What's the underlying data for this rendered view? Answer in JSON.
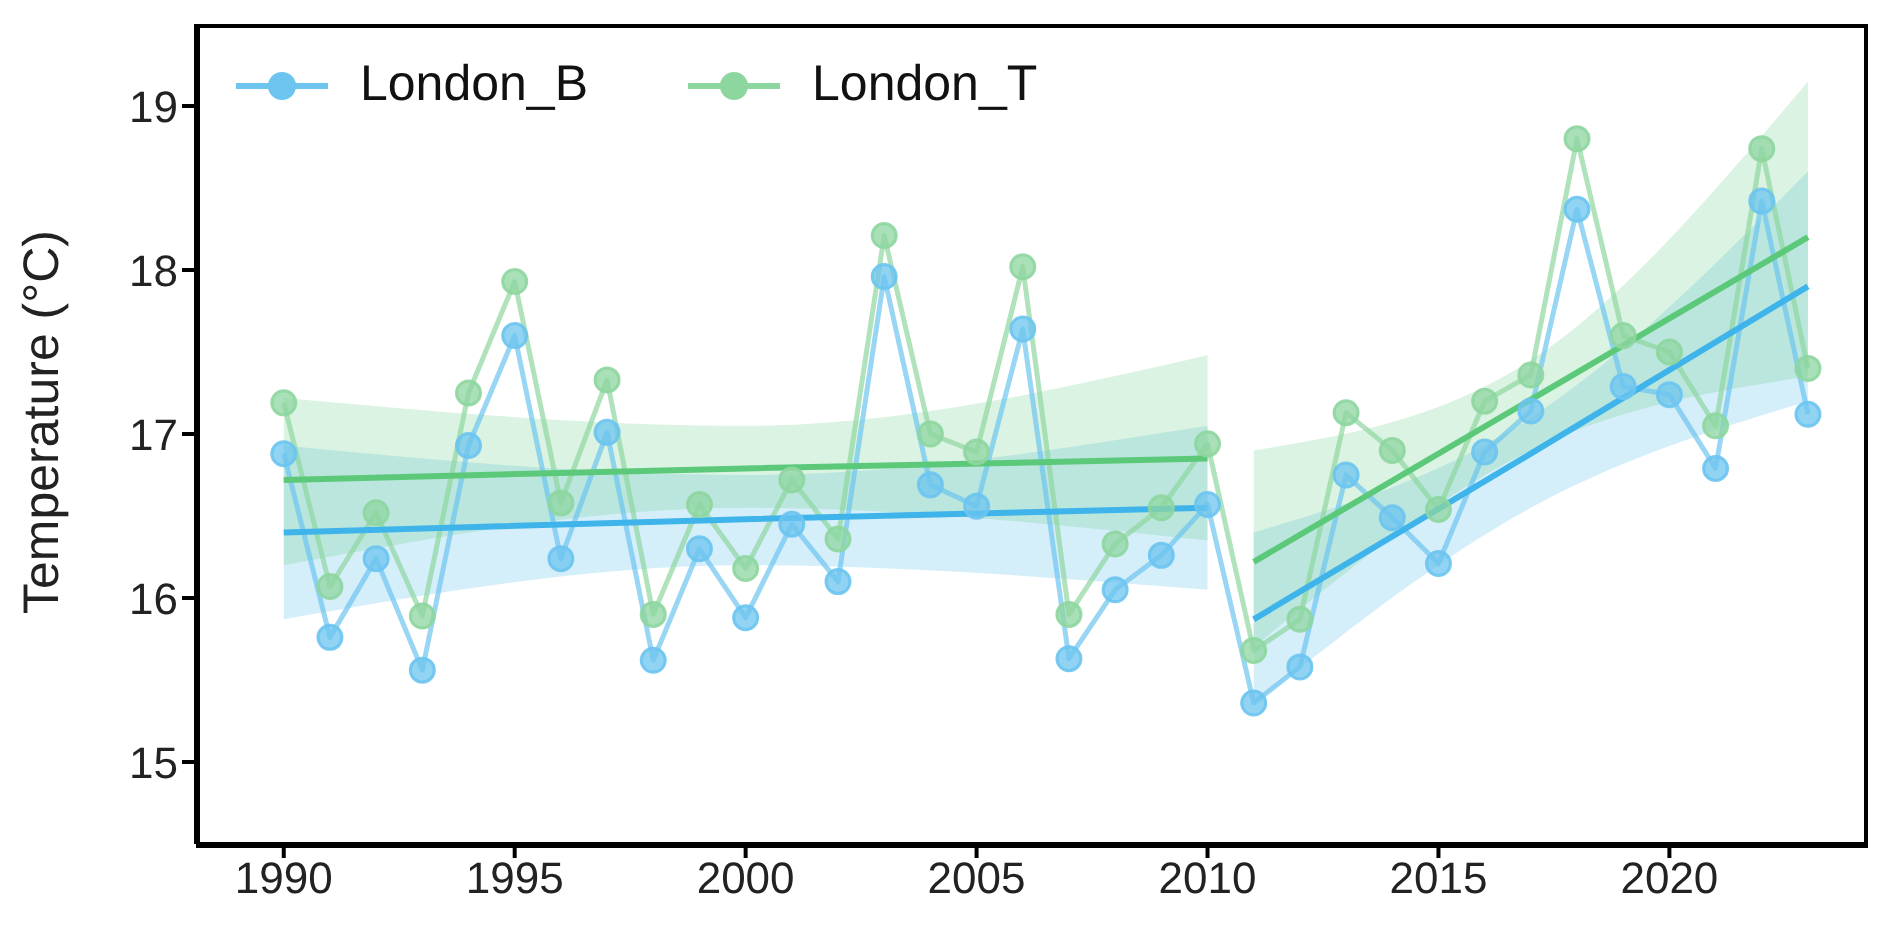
{
  "chart_data": {
    "type": "line",
    "ylabel": "Temperature (°C)",
    "x": [
      1990,
      1991,
      1992,
      1993,
      1994,
      1995,
      1996,
      1997,
      1998,
      1999,
      2000,
      2001,
      2002,
      2003,
      2004,
      2005,
      2006,
      2007,
      2008,
      2009,
      2010,
      2011,
      2012,
      2013,
      2014,
      2015,
      2016,
      2017,
      2018,
      2019,
      2020,
      2021,
      2022,
      2023
    ],
    "series": [
      {
        "name": "London_B",
        "color": "#6cc4ef",
        "values": [
          16.88,
          15.76,
          16.24,
          15.56,
          16.93,
          17.6,
          16.24,
          17.01,
          15.62,
          16.3,
          15.88,
          16.45,
          16.1,
          17.96,
          16.69,
          16.56,
          17.64,
          15.63,
          16.05,
          16.26,
          16.57,
          15.36,
          15.58,
          16.75,
          16.49,
          16.21,
          16.89,
          17.14,
          18.37,
          17.29,
          17.24,
          16.79,
          18.42,
          17.12
        ]
      },
      {
        "name": "London_T",
        "color": "#8ed6a0",
        "values": [
          17.19,
          16.07,
          16.52,
          15.89,
          17.25,
          17.93,
          16.58,
          17.33,
          15.9,
          16.57,
          16.18,
          16.72,
          16.36,
          18.21,
          17.0,
          16.89,
          18.02,
          15.9,
          16.33,
          16.55,
          16.94,
          15.68,
          15.87,
          17.13,
          16.9,
          16.54,
          17.2,
          17.36,
          18.8,
          17.6,
          17.5,
          17.05,
          18.74,
          17.4
        ]
      },
      {
        "type": "line",
        "color": "#3fb4ea",
        "marker": "none",
        "x": [
          1990,
          2000,
          2010
        ],
        "values": [
          16.4,
          16.48,
          16.55
        ],
        "lower": [
          15.87,
          16.2,
          16.05
        ],
        "upper": [
          16.93,
          16.75,
          17.05
        ]
      },
      {
        "type": "line",
        "color": "#5cc97a",
        "marker": "none",
        "x": [
          1990,
          2000,
          2010
        ],
        "values": [
          16.72,
          16.79,
          16.85
        ],
        "lower": [
          16.2,
          16.55,
          16.35
        ],
        "upper": [
          17.22,
          17.05,
          17.48
        ]
      },
      {
        "type": "line",
        "color": "#3fb4ea",
        "marker": "none",
        "x": [
          2011,
          2017,
          2023
        ],
        "values": [
          15.87,
          16.88,
          17.9
        ],
        "lower": [
          15.35,
          16.55,
          17.2
        ],
        "upper": [
          16.4,
          17.1,
          18.6
        ]
      },
      {
        "type": "line",
        "color": "#5cc97a",
        "marker": "none",
        "x": [
          2011,
          2017,
          2023
        ],
        "values": [
          16.22,
          17.21,
          18.2
        ],
        "lower": [
          15.7,
          16.9,
          17.35
        ],
        "upper": [
          16.9,
          17.45,
          19.15
        ]
      }
    ],
    "xlim": [
      1988.1,
      2024.3
    ],
    "xticks": [
      1990,
      1995,
      2000,
      2005,
      2010,
      2015,
      2020
    ],
    "ylim": [
      14.5,
      19.5
    ],
    "yticks": [
      15,
      16,
      17,
      18,
      19
    ],
    "grid": false,
    "legend": "top left",
    "marker": "circle",
    "line_style": "solid"
  }
}
